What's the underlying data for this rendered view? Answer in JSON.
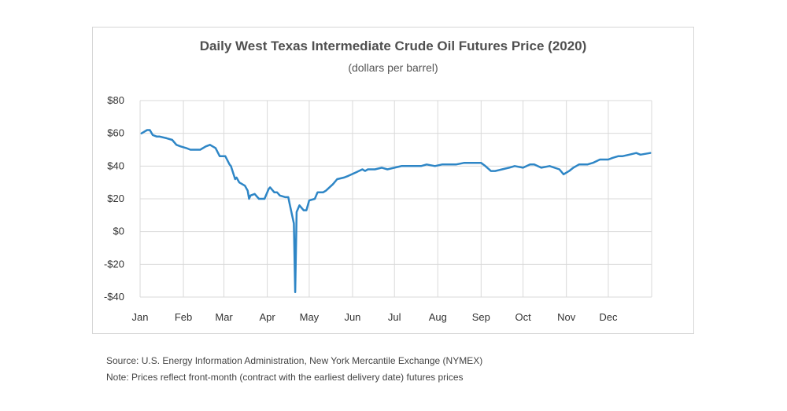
{
  "title": "Daily West Texas Intermediate Crude Oil Futures Price (2020)",
  "subtitle": "(dollars per barrel)",
  "footnotes": {
    "source": "Source: U.S. Energy Information Administration, New York Mercantile Exchange (NYMEX)",
    "note": "Note: Prices reflect front-month (contract with the earliest delivery date) futures prices"
  },
  "colors": {
    "line": "#2e86c6",
    "grid": "#d9d9d9",
    "frame": "#d6d6d6"
  },
  "chart_data": {
    "type": "line",
    "title": "Daily West Texas Intermediate Crude Oil Futures Price (2020)",
    "subtitle": "(dollars per barrel)",
    "xlabel": "",
    "ylabel": "",
    "ylim": [
      -40,
      80
    ],
    "yticks": [
      80,
      60,
      40,
      20,
      0,
      -20,
      -40
    ],
    "ytick_labels": [
      "$80",
      "$60",
      "$40",
      "$20",
      "$0",
      "-$20",
      "-$40"
    ],
    "xticks": [
      "Jan",
      "Feb",
      "Mar",
      "Apr",
      "May",
      "Jun",
      "Jul",
      "Aug",
      "Sep",
      "Oct",
      "Nov",
      "Dec"
    ],
    "grid": true,
    "legend": "none",
    "series": [
      {
        "x": [
          "2020-01-02",
          "2020-01-06",
          "2020-01-08",
          "2020-01-10",
          "2020-01-13",
          "2020-01-15",
          "2020-01-20",
          "2020-01-24",
          "2020-01-27",
          "2020-01-30",
          "2020-02-03",
          "2020-02-06",
          "2020-02-10",
          "2020-02-13",
          "2020-02-17",
          "2020-02-20",
          "2020-02-24",
          "2020-02-27",
          "2020-03-02",
          "2020-03-05",
          "2020-03-06",
          "2020-03-09",
          "2020-03-10",
          "2020-03-12",
          "2020-03-16",
          "2020-03-18",
          "2020-03-19",
          "2020-03-20",
          "2020-03-23",
          "2020-03-26",
          "2020-03-30",
          "2020-04-02",
          "2020-04-03",
          "2020-04-06",
          "2020-04-08",
          "2020-04-10",
          "2020-04-14",
          "2020-04-16",
          "2020-04-17",
          "2020-04-20",
          "2020-04-21",
          "2020-04-22",
          "2020-04-24",
          "2020-04-27",
          "2020-04-29",
          "2020-05-01",
          "2020-05-05",
          "2020-05-07",
          "2020-05-11",
          "2020-05-13",
          "2020-05-18",
          "2020-05-21",
          "2020-05-26",
          "2020-05-29",
          "2020-06-03",
          "2020-06-08",
          "2020-06-10",
          "2020-06-12",
          "2020-06-17",
          "2020-06-22",
          "2020-06-26",
          "2020-07-01",
          "2020-07-06",
          "2020-07-10",
          "2020-07-15",
          "2020-07-20",
          "2020-07-24",
          "2020-07-30",
          "2020-08-04",
          "2020-08-10",
          "2020-08-14",
          "2020-08-20",
          "2020-08-26",
          "2020-09-01",
          "2020-09-04",
          "2020-09-08",
          "2020-09-11",
          "2020-09-16",
          "2020-09-21",
          "2020-09-25",
          "2020-10-01",
          "2020-10-06",
          "2020-10-09",
          "2020-10-14",
          "2020-10-20",
          "2020-10-27",
          "2020-10-30",
          "2020-11-03",
          "2020-11-06",
          "2020-11-10",
          "2020-11-16",
          "2020-11-20",
          "2020-11-25",
          "2020-12-01",
          "2020-12-04",
          "2020-12-08",
          "2020-12-11",
          "2020-12-16",
          "2020-12-21",
          "2020-12-24",
          "2020-12-31"
        ],
        "values": [
          60,
          62,
          62,
          59,
          58,
          58,
          57,
          56,
          53,
          52,
          51,
          50,
          50,
          50,
          52,
          53,
          51,
          46,
          46,
          41,
          40,
          32,
          33,
          30,
          28,
          25,
          20,
          22,
          23,
          20,
          20,
          26,
          27,
          24,
          24,
          22,
          21,
          21,
          17,
          5,
          -37,
          12,
          16,
          13,
          13,
          19,
          20,
          24,
          24,
          25,
          29,
          32,
          33,
          34,
          36,
          38,
          37,
          38,
          38,
          39,
          38,
          39,
          40,
          40,
          40,
          40,
          41,
          40,
          41,
          41,
          41,
          42,
          42,
          42,
          40,
          37,
          37,
          38,
          39,
          40,
          39,
          41,
          41,
          39,
          40,
          38,
          35,
          37,
          39,
          41,
          41,
          42,
          44,
          44,
          45,
          46,
          46,
          47,
          48,
          47,
          48
        ]
      }
    ]
  }
}
